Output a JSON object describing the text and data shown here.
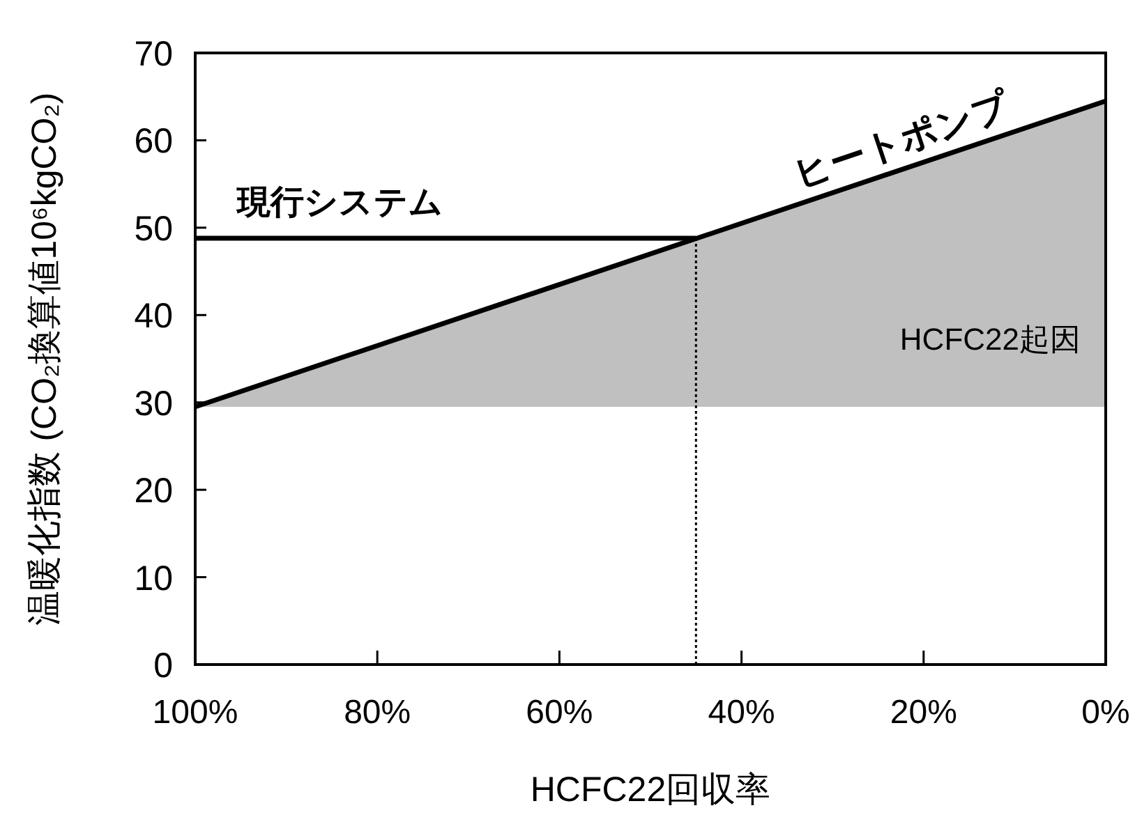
{
  "chart_data": {
    "type": "line",
    "xlabel": "HCFC22回収率",
    "ylabel": "温暖化指数 (CO₂換算値10⁶kgCO₂)",
    "xlim": [
      100,
      0
    ],
    "ylim": [
      0,
      70
    ],
    "xticks": [
      {
        "value": 100,
        "label": "100%"
      },
      {
        "value": 80,
        "label": "80%"
      },
      {
        "value": 60,
        "label": "60%"
      },
      {
        "value": 40,
        "label": "40%"
      },
      {
        "value": 20,
        "label": "20%"
      },
      {
        "value": 0,
        "label": "0%"
      }
    ],
    "yticks": [
      0,
      10,
      20,
      30,
      40,
      50,
      60,
      70
    ],
    "grid": false,
    "series": [
      {
        "name": "現行システム",
        "color": "#000000",
        "x": [
          100,
          45
        ],
        "values": [
          48.8,
          48.8
        ]
      },
      {
        "name": "ヒートポンプ",
        "color": "#000000",
        "x": [
          100,
          0
        ],
        "values": [
          29.5,
          64.5
        ],
        "lower": [
          29.5,
          29.5
        ],
        "upper": [
          29.5,
          64.5
        ]
      },
      {
        "color": "#000000",
        "x": [
          45,
          45
        ],
        "values": [
          0,
          48.8
        ],
        "line_style": "dotted"
      }
    ],
    "annotations": [
      "HCFC22起因"
    ]
  }
}
